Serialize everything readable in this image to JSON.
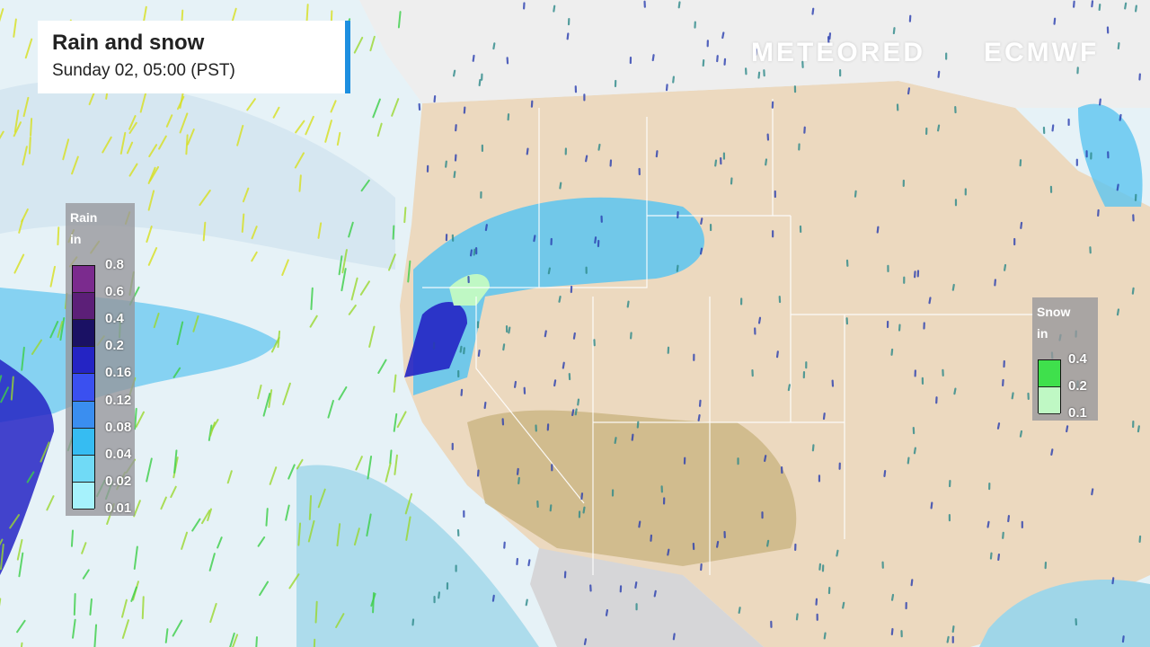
{
  "header": {
    "title": "Rain and snow",
    "subtitle": "Sunday 02, 05:00 (PST)"
  },
  "logos": {
    "meteored": "METEORED",
    "ecmwf": "ECMWF"
  },
  "rain_legend": {
    "title": "Rain",
    "unit": "in",
    "labels": [
      "0.8",
      "0.6",
      "0.4",
      "0.2",
      "0.16",
      "0.12",
      "0.08",
      "0.04",
      "0.02",
      "0.01"
    ],
    "colors": [
      "#7b2b8e",
      "#5c1f78",
      "#1a1164",
      "#2424c4",
      "#3a50f0",
      "#3a8ef0",
      "#36bcf2",
      "#70daf6",
      "#a6f2fc"
    ]
  },
  "snow_legend": {
    "title": "Snow",
    "unit": "in",
    "labels": [
      "0.4",
      "0.2",
      "0.1"
    ],
    "colors": [
      "#3fe04c",
      "#bff8c4"
    ]
  },
  "colors": {
    "land": "#ecd9bf",
    "ocean": "#e4f1f6",
    "accent": "#1d8fe0"
  }
}
